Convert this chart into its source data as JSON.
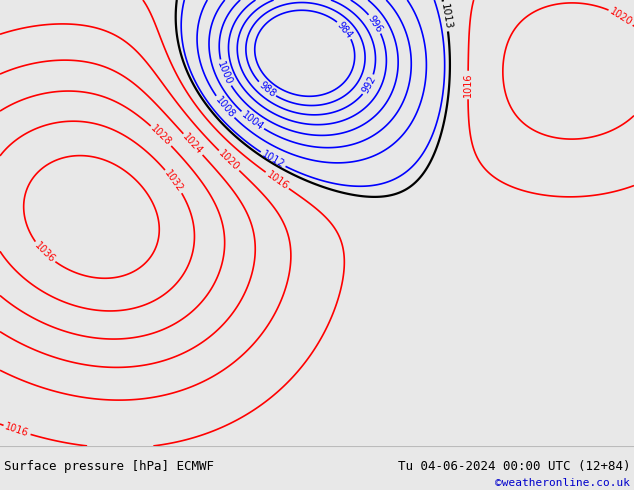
{
  "background_color": "#f0f0f0",
  "map_bg_color": "#c8dfc8",
  "ocean_color": "#d8eaf0",
  "land_color": "#c8dfc8",
  "bottom_bar_color": "#e8e8e8",
  "bottom_text_left": "Surface pressure [hPa] ECMWF",
  "bottom_text_right": "Tu 04-06-2024 00:00 UTC (12+84)",
  "bottom_text_url": "©weatheronline.co.uk",
  "bottom_text_color": "#000000",
  "bottom_url_color": "#0000cc",
  "text_font_size": 9,
  "url_font_size": 8,
  "fig_width": 6.34,
  "fig_height": 4.9,
  "dpi": 100
}
